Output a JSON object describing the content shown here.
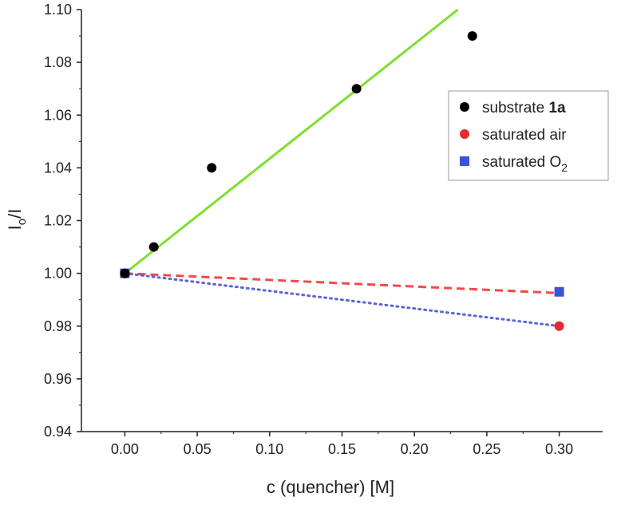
{
  "chart_data": {
    "type": "scatter",
    "title": "",
    "xlabel": "c (quencher) [M]",
    "ylabel_main": "I",
    "ylabel_sub": "o",
    "ylabel_rest": "/I",
    "xlim": [
      -0.03,
      0.33
    ],
    "ylim": [
      0.94,
      1.1
    ],
    "xticks": [
      0.0,
      0.05,
      0.1,
      0.15,
      0.2,
      0.25,
      0.3
    ],
    "xtick_labels": [
      "0.00",
      "0.05",
      "0.10",
      "0.15",
      "0.20",
      "0.25",
      "0.30"
    ],
    "yticks": [
      0.94,
      0.96,
      0.98,
      1.0,
      1.02,
      1.04,
      1.06,
      1.08,
      1.1
    ],
    "ytick_labels": [
      "0.94",
      "0.96",
      "0.98",
      "1.00",
      "1.02",
      "1.04",
      "1.06",
      "1.08",
      "1.10"
    ],
    "grid": false,
    "legend_position": "top-right",
    "series": [
      {
        "name_prefix": "substrate ",
        "name_bold": "1a",
        "marker": "circle",
        "color": "#000000",
        "x": [
          0.0,
          0.02,
          0.06,
          0.16,
          0.24
        ],
        "y": [
          1.0,
          1.01,
          1.04,
          1.07,
          1.09
        ]
      },
      {
        "name": "saturated air",
        "marker": "circle",
        "color": "#e8282b",
        "x": [
          0.0,
          0.3
        ],
        "y": [
          1.0,
          0.98
        ]
      },
      {
        "name_prefix": "saturated O",
        "name_sub": "2",
        "marker": "square",
        "color": "#3b53d6",
        "x": [
          0.0,
          0.3
        ],
        "y": [
          1.0,
          0.993
        ]
      }
    ],
    "fits": [
      {
        "style": "solid",
        "color": "#7ddf2e",
        "x": [
          0.0,
          0.23
        ],
        "y": [
          1.0,
          1.1
        ]
      },
      {
        "style": "dashed",
        "color": "#f04a4a",
        "x": [
          0.0,
          0.3
        ],
        "y": [
          1.0,
          0.9925
        ]
      },
      {
        "style": "dotted",
        "color": "#5a64d8",
        "x": [
          0.0,
          0.3
        ],
        "y": [
          1.0,
          0.98
        ]
      }
    ]
  }
}
